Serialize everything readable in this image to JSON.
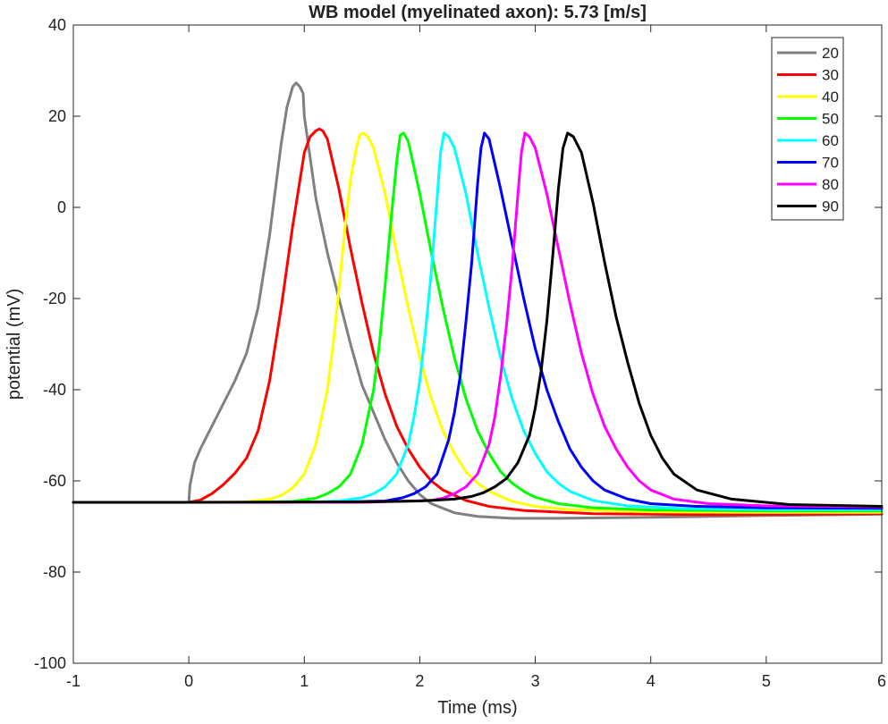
{
  "chart_data": {
    "type": "line",
    "title": "WB model (myelinated axon): 5.73 [m/s]",
    "xlabel": "Time (ms)",
    "ylabel": "potential (mV)",
    "xlim": [
      -1,
      6
    ],
    "ylim": [
      -100,
      40
    ],
    "xticks": [
      -1,
      0,
      1,
      2,
      3,
      4,
      5,
      6
    ],
    "yticks": [
      -100,
      -80,
      -60,
      -40,
      -20,
      0,
      20,
      40
    ],
    "grid": false,
    "legend_position": "top-right",
    "series": [
      {
        "name": "20",
        "color": "#808080",
        "x": [
          -1,
          0,
          0.01,
          0.05,
          0.1,
          0.2,
          0.3,
          0.4,
          0.5,
          0.6,
          0.7,
          0.75,
          0.8,
          0.85,
          0.9,
          0.93,
          0.96,
          0.99,
          1.0,
          1.1,
          1.2,
          1.3,
          1.4,
          1.5,
          1.6,
          1.7,
          1.8,
          1.9,
          2.0,
          2.1,
          2.2,
          2.3,
          2.5,
          2.8,
          3.2,
          4.0,
          5.0,
          6.0
        ],
        "y": [
          -64.7,
          -64.7,
          -61,
          -56,
          -53,
          -48,
          -43,
          -38,
          -32,
          -22,
          -6,
          4,
          14,
          22,
          26.5,
          27.3,
          26.5,
          25,
          20,
          2,
          -10,
          -20,
          -30,
          -39,
          -45,
          -51,
          -56,
          -60,
          -63,
          -65,
          -66,
          -67,
          -67.8,
          -68.2,
          -68.2,
          -68,
          -67.6,
          -67.3
        ]
      },
      {
        "name": "30",
        "color": "#ff0000",
        "x": [
          -1,
          0,
          0.1,
          0.2,
          0.3,
          0.4,
          0.5,
          0.6,
          0.7,
          0.8,
          0.9,
          0.95,
          1.0,
          1.05,
          1.1,
          1.13,
          1.16,
          1.2,
          1.3,
          1.4,
          1.5,
          1.6,
          1.7,
          1.8,
          1.9,
          2.0,
          2.1,
          2.2,
          2.4,
          2.6,
          2.9,
          3.5,
          4.5,
          6.0
        ],
        "y": [
          -64.7,
          -64.7,
          -64.2,
          -62.8,
          -60.8,
          -58.3,
          -55,
          -49,
          -38,
          -22,
          -4,
          4,
          12,
          15.5,
          16.8,
          17.2,
          16.8,
          15,
          4,
          -9,
          -21,
          -32,
          -41,
          -48,
          -53,
          -57,
          -60,
          -62,
          -64.3,
          -65.6,
          -66.5,
          -67.2,
          -67.4,
          -67.2
        ]
      },
      {
        "name": "40",
        "color": "#ffff00",
        "x": [
          -1,
          0,
          0.5,
          0.7,
          0.8,
          0.9,
          1.0,
          1.1,
          1.2,
          1.25,
          1.3,
          1.35,
          1.4,
          1.45,
          1.48,
          1.51,
          1.55,
          1.6,
          1.7,
          1.8,
          1.9,
          2.0,
          2.1,
          2.2,
          2.3,
          2.4,
          2.5,
          2.6,
          2.8,
          3.0,
          3.3,
          4.0,
          5.0,
          6.0
        ],
        "y": [
          -64.7,
          -64.7,
          -64.6,
          -64,
          -63.2,
          -61.5,
          -58.5,
          -52,
          -40,
          -30,
          -18,
          -5,
          6,
          13,
          15.8,
          16.3,
          15.5,
          13,
          3,
          -10,
          -22,
          -33,
          -42,
          -49,
          -54,
          -58,
          -60.5,
          -62.3,
          -64.5,
          -65.6,
          -66.3,
          -66.8,
          -66.9,
          -66.9
        ]
      },
      {
        "name": "50",
        "color": "#00ff00",
        "x": [
          -1,
          0,
          0.5,
          0.9,
          1.1,
          1.2,
          1.3,
          1.4,
          1.5,
          1.6,
          1.65,
          1.7,
          1.75,
          1.8,
          1.83,
          1.86,
          1.9,
          2.0,
          2.1,
          2.2,
          2.3,
          2.4,
          2.5,
          2.6,
          2.7,
          2.8,
          2.9,
          3.0,
          3.2,
          3.5,
          4.0,
          5.0,
          6.0
        ],
        "y": [
          -64.7,
          -64.7,
          -64.7,
          -64.5,
          -63.8,
          -62.8,
          -61.3,
          -58.5,
          -52,
          -40,
          -30,
          -17,
          -3,
          10,
          15.8,
          16.3,
          14.5,
          3,
          -10,
          -22,
          -33,
          -42,
          -49,
          -54,
          -58,
          -60.5,
          -62.3,
          -63.6,
          -65,
          -65.9,
          -66.4,
          -66.6,
          -66.6
        ]
      },
      {
        "name": "60",
        "color": "#00ffff",
        "x": [
          -1,
          0,
          1.0,
          1.3,
          1.5,
          1.6,
          1.7,
          1.8,
          1.9,
          1.95,
          2.0,
          2.05,
          2.1,
          2.15,
          2.18,
          2.21,
          2.25,
          2.3,
          2.4,
          2.5,
          2.6,
          2.7,
          2.8,
          2.9,
          3.0,
          3.1,
          3.2,
          3.3,
          3.5,
          3.8,
          4.3,
          5.0,
          6.0
        ],
        "y": [
          -64.7,
          -64.7,
          -64.7,
          -64.4,
          -63.7,
          -62.8,
          -61.3,
          -58.5,
          -52,
          -46,
          -38,
          -27,
          -14,
          2,
          12,
          16.3,
          15.5,
          13,
          3,
          -10,
          -22,
          -33,
          -42,
          -49,
          -54,
          -58,
          -60.5,
          -62.3,
          -64.3,
          -65.5,
          -66.1,
          -66.3,
          -66.3
        ]
      },
      {
        "name": "70",
        "color": "#0000ff",
        "x": [
          -1,
          0,
          1.2,
          1.7,
          1.85,
          1.95,
          2.05,
          2.15,
          2.25,
          2.3,
          2.35,
          2.4,
          2.45,
          2.5,
          2.53,
          2.56,
          2.6,
          2.7,
          2.8,
          2.9,
          3.0,
          3.1,
          3.2,
          3.3,
          3.4,
          3.5,
          3.6,
          3.8,
          4.0,
          4.4,
          5.0,
          6.0
        ],
        "y": [
          -64.7,
          -64.7,
          -64.7,
          -64.4,
          -63.7,
          -62.8,
          -61.3,
          -58.5,
          -51,
          -45,
          -37,
          -25,
          -12,
          5,
          13,
          16.3,
          15,
          4,
          -8,
          -20,
          -31,
          -40,
          -47,
          -53,
          -57,
          -60,
          -62,
          -64,
          -65,
          -65.6,
          -65.9,
          -66
        ]
      },
      {
        "name": "80",
        "color": "#ff00ff",
        "x": [
          -1,
          0,
          1.5,
          2.1,
          2.2,
          2.3,
          2.4,
          2.5,
          2.6,
          2.65,
          2.7,
          2.75,
          2.8,
          2.85,
          2.88,
          2.91,
          2.95,
          3.0,
          3.1,
          3.2,
          3.3,
          3.4,
          3.5,
          3.6,
          3.7,
          3.8,
          3.9,
          4.0,
          4.2,
          4.5,
          5.0,
          6.0
        ],
        "y": [
          -64.7,
          -64.7,
          -64.7,
          -64.3,
          -63.8,
          -62.8,
          -61.3,
          -58.5,
          -52,
          -46,
          -37,
          -26,
          -13,
          3,
          12,
          16.3,
          15.5,
          13,
          3,
          -9,
          -21,
          -32,
          -41,
          -48,
          -53,
          -57,
          -60,
          -62,
          -64,
          -65,
          -65.5,
          -65.7
        ]
      },
      {
        "name": "90",
        "color": "#000000",
        "x": [
          -1,
          0,
          1.5,
          2.0,
          2.3,
          2.45,
          2.55,
          2.65,
          2.75,
          2.85,
          2.95,
          3.0,
          3.05,
          3.1,
          3.15,
          3.2,
          3.24,
          3.28,
          3.33,
          3.4,
          3.5,
          3.6,
          3.7,
          3.8,
          3.9,
          4.0,
          4.1,
          4.2,
          4.4,
          4.7,
          5.2,
          6.0
        ],
        "y": [
          -64.7,
          -64.7,
          -64.6,
          -64.4,
          -64,
          -63.4,
          -62.6,
          -61.3,
          -59.5,
          -56,
          -50,
          -44,
          -36,
          -25,
          -11,
          4,
          13,
          16.3,
          15.5,
          12,
          1,
          -12,
          -24,
          -34,
          -43,
          -50,
          -55,
          -58.5,
          -62,
          -64,
          -65.2,
          -65.6
        ]
      }
    ]
  }
}
